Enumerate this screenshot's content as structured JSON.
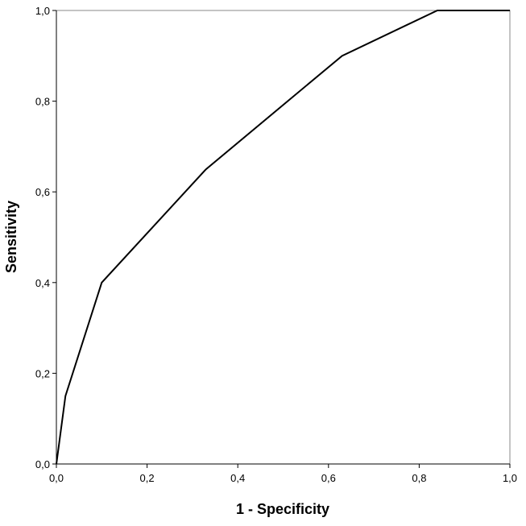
{
  "chart_data": {
    "type": "line",
    "x_label": "1 - Specificity",
    "y_label": "Sensitivity",
    "x": [
      0,
      0.02,
      0.1,
      0.33,
      0.63,
      0.84,
      1.0
    ],
    "series": [
      {
        "color": "#000000",
        "values": [
          0,
          0.15,
          0.4,
          0.65,
          0.9,
          1.0,
          1.0
        ]
      }
    ],
    "xlim": [
      0,
      1
    ],
    "ylim": [
      0,
      1
    ],
    "xticks": [
      {
        "value": 0,
        "label": "0,0"
      },
      {
        "value": 0.2,
        "label": "0,2"
      },
      {
        "value": 0.4,
        "label": "0,4"
      },
      {
        "value": 0.6,
        "label": "0,6"
      },
      {
        "value": 0.8,
        "label": "0,8"
      },
      {
        "value": 1,
        "label": "1,0"
      }
    ],
    "yticks": [
      {
        "value": 0,
        "label": "0,0"
      },
      {
        "value": 0.2,
        "label": "0,2"
      },
      {
        "value": 0.4,
        "label": "0,4"
      },
      {
        "value": 0.6,
        "label": "0,6"
      },
      {
        "value": 0.8,
        "label": "0,8"
      },
      {
        "value": 1,
        "label": "1,0"
      }
    ],
    "grid": false
  }
}
